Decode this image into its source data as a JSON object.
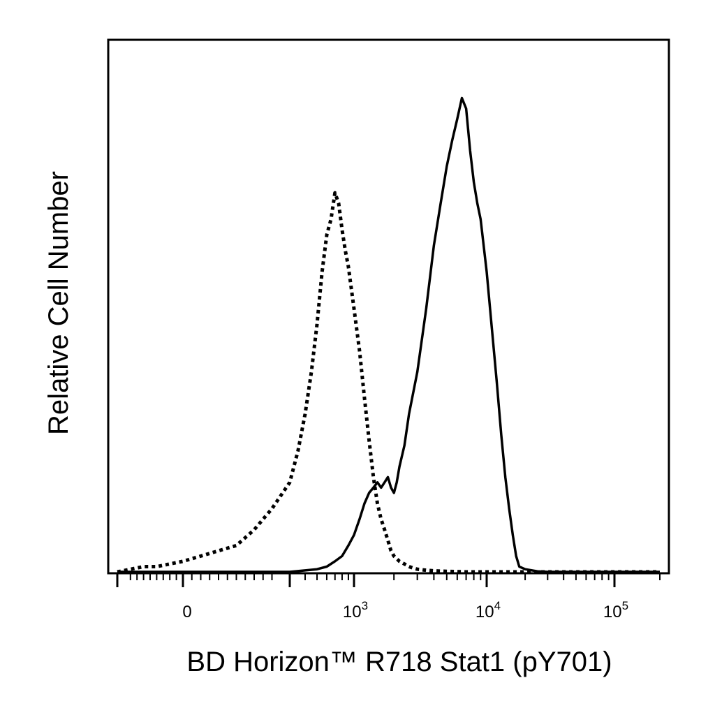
{
  "chart_data": {
    "type": "line",
    "title": "",
    "xlabel": "BD Horizon™ R718 Stat1 (pY701)",
    "ylabel": "Relative Cell Number",
    "x_scale": "biexponential",
    "xlim": [
      -250,
      200000
    ],
    "ylim": [
      0,
      100
    ],
    "grid": false,
    "legend": "none",
    "x_ticks": [
      {
        "value": 0,
        "base": "0",
        "exp": ""
      },
      {
        "value": 1000,
        "base": "10",
        "exp": "3"
      },
      {
        "value": 10000,
        "base": "10",
        "exp": "4"
      },
      {
        "value": 100000,
        "base": "10",
        "exp": "5"
      }
    ],
    "series": [
      {
        "style": "dotted",
        "color": "#000000",
        "x": [
          -250,
          -150,
          -100,
          0,
          50,
          100,
          150,
          200,
          250,
          300,
          350,
          400,
          450,
          500,
          550,
          600,
          650,
          700,
          750,
          800,
          850,
          900,
          1000,
          1100,
          1200,
          1300,
          1400,
          1500,
          1600,
          1700,
          1800,
          1900,
          2000,
          2200,
          2400,
          2600,
          2800,
          3000,
          3500,
          4000,
          5000,
          7000,
          10000,
          20000,
          50000,
          100000,
          200000
        ],
        "values": [
          0,
          1,
          1,
          2,
          3,
          4,
          5,
          8,
          12,
          17,
          23,
          30,
          38,
          47,
          57,
          64,
          67,
          72,
          70,
          65,
          61,
          58,
          50,
          42,
          33,
          25,
          18,
          13,
          10,
          8,
          6,
          4,
          3,
          2,
          1.5,
          1,
          0.7,
          0.5,
          0.3,
          0.2,
          0.1,
          0,
          0,
          0,
          0,
          0,
          0
        ]
      },
      {
        "style": "solid",
        "color": "#000000",
        "x": [
          -250,
          0,
          300,
          500,
          600,
          700,
          800,
          900,
          1000,
          1100,
          1200,
          1300,
          1400,
          1500,
          1600,
          1700,
          1800,
          1900,
          2000,
          2100,
          2200,
          2400,
          2600,
          3000,
          3500,
          4000,
          4500,
          5000,
          5500,
          6000,
          6500,
          7000,
          7500,
          8000,
          8500,
          9000,
          10000,
          11000,
          12000,
          13000,
          14000,
          15000,
          16000,
          17000,
          18000,
          20000,
          25000,
          30000,
          50000,
          100000,
          200000
        ],
        "values": [
          0,
          0,
          0,
          0.5,
          1,
          2,
          3,
          5,
          7,
          10,
          13,
          15,
          16,
          17,
          16,
          17,
          18,
          16,
          15,
          17,
          20,
          24,
          30,
          38,
          50,
          62,
          70,
          77,
          82,
          86,
          90,
          88,
          80,
          74,
          70,
          67,
          57,
          46,
          36,
          26,
          18,
          12,
          7,
          3,
          1,
          0.5,
          0.1,
          0,
          0,
          0,
          0
        ]
      }
    ]
  }
}
